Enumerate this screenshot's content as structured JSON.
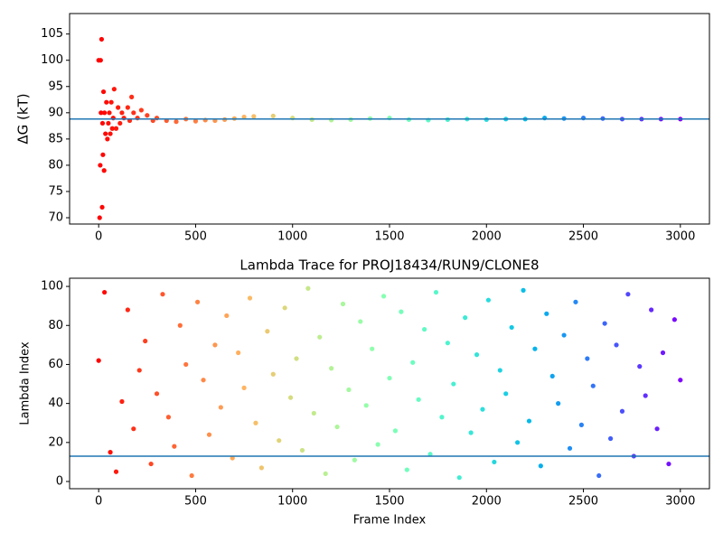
{
  "chart_data": [
    {
      "type": "scatter",
      "ylabel": "ΔG (kT)",
      "colormap": "rainbow_r",
      "x": [
        0,
        5,
        8,
        10,
        12,
        15,
        18,
        20,
        22,
        25,
        28,
        30,
        35,
        40,
        45,
        50,
        55,
        60,
        65,
        70,
        75,
        80,
        90,
        100,
        110,
        120,
        130,
        150,
        160,
        170,
        180,
        200,
        220,
        250,
        280,
        300,
        350,
        400,
        450,
        500,
        550,
        600,
        650,
        700,
        750,
        800,
        900,
        1000,
        1100,
        1200,
        1300,
        1400,
        1500,
        1600,
        1700,
        1800,
        1900,
        2000,
        2100,
        2200,
        2300,
        2400,
        2500,
        2600,
        2700,
        2800,
        2900,
        3000
      ],
      "y": [
        100,
        70,
        80,
        100,
        90,
        104,
        72,
        88,
        82,
        94,
        79,
        90,
        86,
        92,
        85,
        88,
        90,
        86,
        92,
        87,
        89,
        94.5,
        87,
        91,
        88,
        90,
        89,
        91,
        88.5,
        93,
        90,
        89,
        90.5,
        89.5,
        88.5,
        89,
        88.5,
        88.3,
        88.8,
        88.4,
        88.6,
        88.5,
        88.7,
        88.9,
        89.2,
        89.3,
        89.4,
        89,
        88.7,
        88.6,
        88.7,
        88.9,
        89,
        88.7,
        88.6,
        88.7,
        88.8,
        88.7,
        88.8,
        88.8,
        89,
        88.9,
        89,
        88.9,
        88.8,
        88.8,
        88.8,
        88.8
      ],
      "hline": {
        "value": 88.8,
        "color": "#1f77b4"
      },
      "xlim": [
        -150,
        3150
      ],
      "ylim": [
        68.8,
        108.9
      ],
      "xticks": [
        0,
        500,
        1000,
        1500,
        2000,
        2500,
        3000
      ],
      "yticks": [
        70,
        75,
        80,
        85,
        90,
        95,
        100,
        105
      ]
    },
    {
      "type": "scatter",
      "title": "Lambda Trace for PROJ18434/RUN9/CLONE8",
      "xlabel": "Frame Index",
      "ylabel": "Lambda Index",
      "colormap": "rainbow_r",
      "x": [
        0,
        30,
        60,
        90,
        120,
        150,
        180,
        210,
        240,
        270,
        300,
        330,
        360,
        390,
        420,
        450,
        480,
        510,
        540,
        570,
        600,
        630,
        660,
        690,
        720,
        750,
        780,
        810,
        840,
        870,
        900,
        930,
        960,
        990,
        1020,
        1050,
        1080,
        1110,
        1140,
        1170,
        1200,
        1230,
        1260,
        1290,
        1320,
        1350,
        1380,
        1410,
        1440,
        1470,
        1500,
        1530,
        1560,
        1590,
        1620,
        1650,
        1680,
        1710,
        1740,
        1770,
        1800,
        1830,
        1860,
        1890,
        1920,
        1950,
        1980,
        2010,
        2040,
        2070,
        2100,
        2130,
        2160,
        2190,
        2220,
        2250,
        2280,
        2310,
        2340,
        2370,
        2400,
        2430,
        2460,
        2490,
        2520,
        2550,
        2580,
        2610,
        2640,
        2670,
        2700,
        2730,
        2760,
        2790,
        2820,
        2850,
        2880,
        2910,
        2940,
        2970,
        3000
      ],
      "y": [
        62,
        97,
        15,
        5,
        41,
        88,
        27,
        57,
        72,
        9,
        45,
        96,
        33,
        18,
        80,
        60,
        3,
        92,
        52,
        24,
        70,
        38,
        85,
        12,
        66,
        48,
        94,
        30,
        7,
        77,
        55,
        21,
        89,
        43,
        63,
        16,
        99,
        35,
        74,
        4,
        58,
        28,
        91,
        47,
        11,
        82,
        39,
        68,
        19,
        95,
        53,
        26,
        87,
        6,
        61,
        42,
        78,
        14,
        97,
        33,
        71,
        50,
        2,
        84,
        25,
        65,
        37,
        93,
        10,
        57,
        45,
        79,
        20,
        98,
        31,
        68,
        8,
        86,
        54,
        40,
        75,
        17,
        92,
        29,
        63,
        49,
        3,
        81,
        22,
        70,
        36,
        96,
        13,
        59,
        44,
        88,
        27,
        66,
        9,
        83,
        52
      ],
      "hline": {
        "value": 13,
        "color": "#1f77b4"
      },
      "xlim": [
        -150,
        3150
      ],
      "ylim": [
        -3.7,
        104.2
      ],
      "xticks": [
        0,
        500,
        1000,
        1500,
        2000,
        2500,
        3000
      ],
      "yticks": [
        0,
        20,
        40,
        60,
        80,
        100
      ]
    }
  ]
}
